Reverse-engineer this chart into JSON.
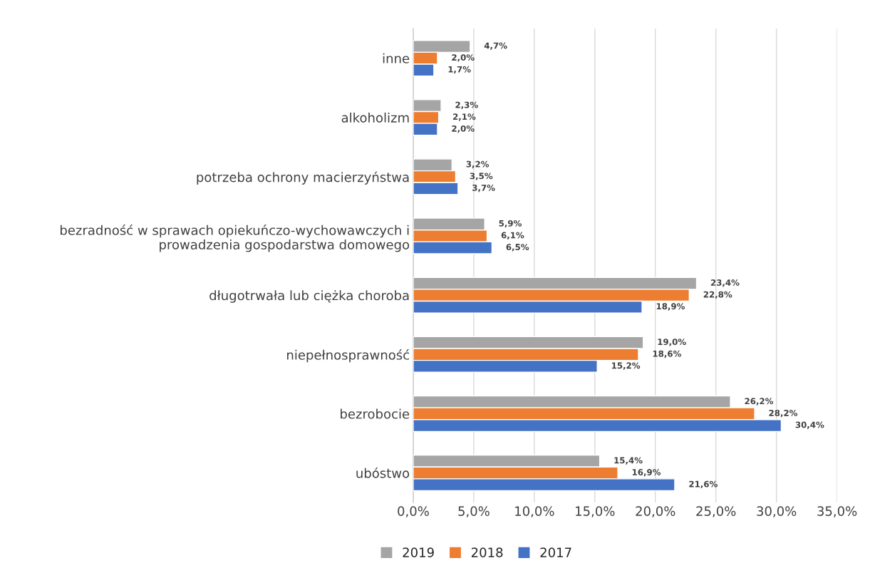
{
  "chart_data": {
    "type": "bar",
    "orientation": "horizontal",
    "categories": [
      "inne",
      "alkoholizm",
      "potrzeba ochrony macierzyństwa",
      "bezradność w sprawach opiekuńczo-wychowawczych i\nprowadzenia gospodarstwa domowego",
      "długotrwała lub ciężka choroba",
      "niepełnosprawność",
      "bezrobocie",
      "ubóstwo"
    ],
    "series": [
      {
        "name": "2019",
        "color": "#a5a5a5",
        "values": [
          4.7,
          2.3,
          3.2,
          5.9,
          23.4,
          19.0,
          26.2,
          15.4
        ],
        "value_labels": [
          "4,7%",
          "2,3%",
          "3,2%",
          "5,9%",
          "23,4%",
          "19,0%",
          "26,2%",
          "15,4%"
        ]
      },
      {
        "name": "2018",
        "color": "#ed7d31",
        "values": [
          2.0,
          2.1,
          3.5,
          6.1,
          22.8,
          18.6,
          28.2,
          16.9
        ],
        "value_labels": [
          "2,0%",
          "2,1%",
          "3,5%",
          "6,1%",
          "22,8%",
          "18,6%",
          "28,2%",
          "16,9%"
        ]
      },
      {
        "name": "2017",
        "color": "#4472c4",
        "values": [
          1.7,
          2.0,
          3.7,
          6.5,
          18.9,
          15.2,
          30.4,
          21.6
        ],
        "value_labels": [
          "1,7%",
          "2,0%",
          "3,7%",
          "6,5%",
          "18,9%",
          "15,2%",
          "30,4%",
          "21,6%"
        ]
      }
    ],
    "xlim": [
      0,
      35
    ],
    "xticks": [
      {
        "value": 0,
        "label": "0,0%"
      },
      {
        "value": 5,
        "label": "5,0%"
      },
      {
        "value": 10,
        "label": "10,0%"
      },
      {
        "value": 15,
        "label": "15,0%"
      },
      {
        "value": 20,
        "label": "20,0%"
      },
      {
        "value": 25,
        "label": "25,0%"
      },
      {
        "value": 30,
        "label": "30,0%"
      },
      {
        "value": 35,
        "label": "35,0%"
      }
    ],
    "grid": "x",
    "legend": "bottom"
  }
}
